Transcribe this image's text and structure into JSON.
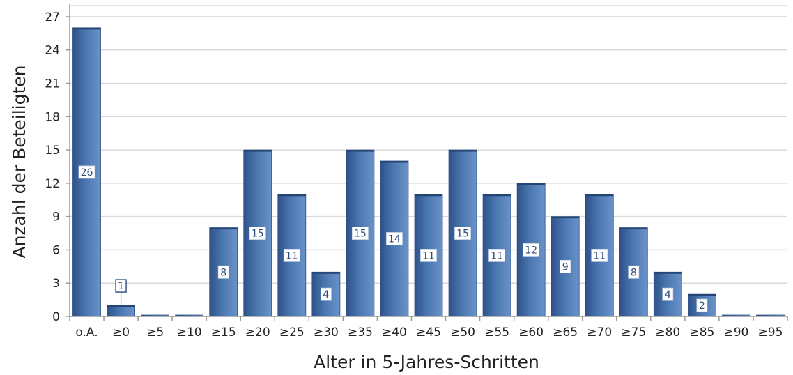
{
  "chart_data": {
    "type": "bar",
    "xlabel": "Alter in 5-Jahres-Schritten",
    "ylabel": "Anzahl der Beteiligten",
    "categories": [
      "o.A.",
      "≥0",
      "≥5",
      "≥10",
      "≥15",
      "≥20",
      "≥25",
      "≥30",
      "≥35",
      "≥40",
      "≥45",
      "≥50",
      "≥55",
      "≥60",
      "≥65",
      "≥70",
      "≥75",
      "≥80",
      "≥85",
      "≥90",
      "≥95"
    ],
    "values": [
      26,
      1,
      0,
      0,
      8,
      15,
      11,
      4,
      15,
      14,
      11,
      15,
      11,
      12,
      9,
      11,
      8,
      4,
      2,
      0,
      0
    ],
    "yticks": [
      "0",
      "3",
      "6",
      "9",
      "12",
      "15",
      "18",
      "21",
      "24",
      "27"
    ],
    "ylim": [
      0,
      28
    ],
    "grid": true,
    "legend": "none",
    "bar_color": "#3f6aa3"
  }
}
